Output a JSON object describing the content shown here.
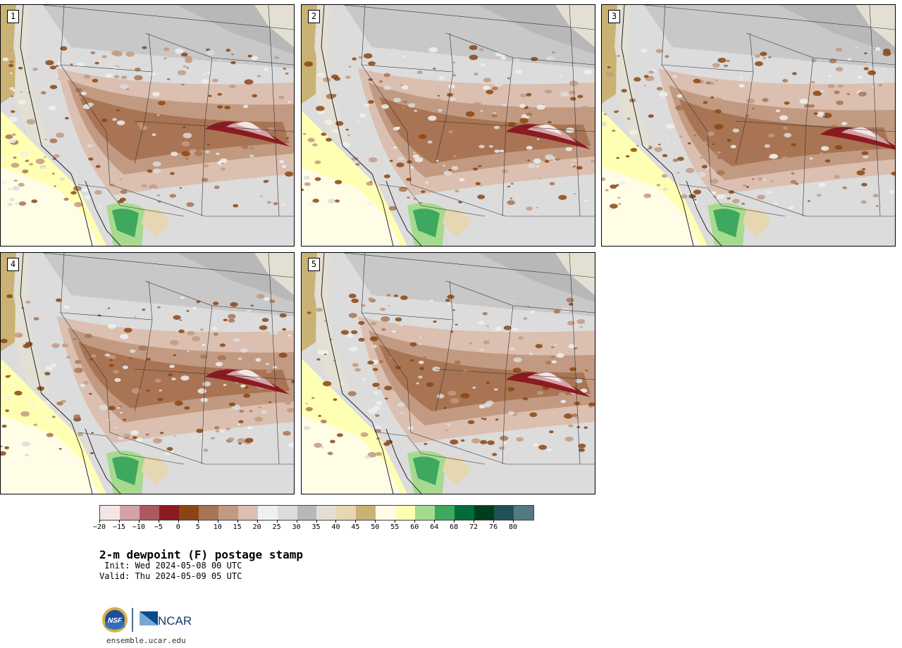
{
  "panels": [
    {
      "label": "1",
      "region": "southwest-us-dewpoint-member-1"
    },
    {
      "label": "2",
      "region": "southwest-us-dewpoint-member-2"
    },
    {
      "label": "3",
      "region": "southwest-us-dewpoint-member-3"
    },
    {
      "label": "4",
      "region": "southwest-us-dewpoint-member-4"
    },
    {
      "label": "5",
      "region": "southwest-us-dewpoint-member-5"
    }
  ],
  "colorbar": {
    "colors": [
      "#f5e6e6",
      "#d4a3a8",
      "#ad5a5f",
      "#8b1a21",
      "#8b4513",
      "#a87453",
      "#c29a82",
      "#dbbfb0",
      "#f0f0f0",
      "#dcdcdc",
      "#b8b8b8",
      "#e3e0d3",
      "#e6d7b3",
      "#c9b273",
      "#fffde6",
      "#ffffb3",
      "#a6db8f",
      "#3fa85f",
      "#006d38",
      "#003d1f",
      "#1f5157",
      "#537a7e"
    ],
    "tick_labels": [
      "−20",
      "−15",
      "−10",
      "−5",
      "0",
      "5",
      "10",
      "15",
      "20",
      "25",
      "30",
      "35",
      "40",
      "45",
      "50",
      "55",
      "60",
      "64",
      "68",
      "72",
      "76",
      "80"
    ]
  },
  "title": "2-m dewpoint (F) postage stamp",
  "init_line": " Init: Wed 2024-05-08 00 UTC",
  "valid_line": "Valid: Thu 2024-05-09 05 UTC",
  "logos": {
    "nsf_text": "NSF",
    "ncar_text": "NCAR",
    "nsf_icon": "nsf-seal-icon",
    "ncar_icon": "ncar-logo-icon"
  },
  "url": "ensemble.ucar.edu"
}
